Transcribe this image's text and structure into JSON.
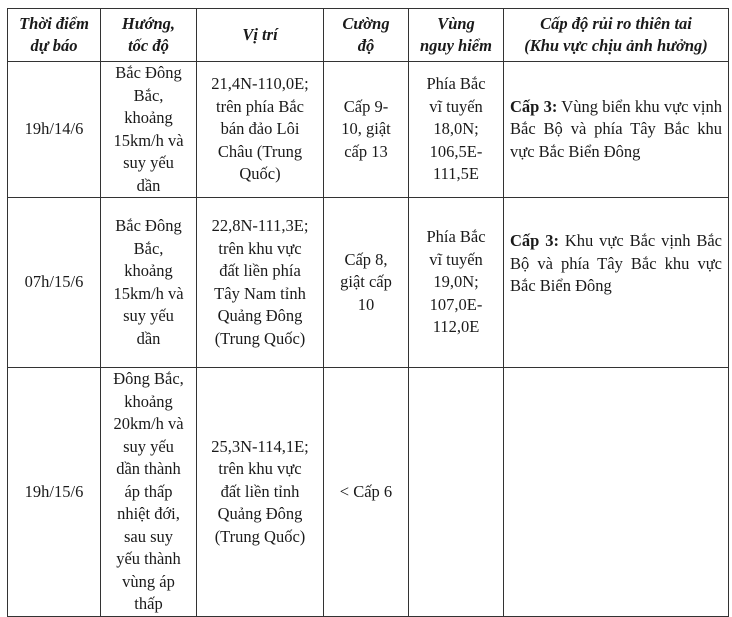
{
  "headers": [
    "Thời điểm\ndự báo",
    "Hướng,\ntốc độ",
    "Vị trí",
    "Cường\nđộ",
    "Vùng\nnguy hiểm",
    "Cấp độ rủi ro thiên tai\n(Khu vực chịu ảnh hưởng)"
  ],
  "rows": [
    {
      "time": "19h/14/6",
      "direction": "Bắc Đông\nBắc,\nkhoảng\n15km/h và\nsuy yếu\ndần",
      "position": "21,4N-110,0E;\ntrên phía Bắc\nbán đảo Lôi\nChâu (Trung\nQuốc)",
      "intensity": "Cấp 9-\n10, giật\ncấp 13",
      "danger_zone": "Phía Bắc\nvĩ tuyến\n18,0N;\n106,5E-\n111,5E",
      "risk_label": "Cấp 3:",
      "risk_text": " Vùng biển khu vực vịnh Bắc Bộ và phía Tây Bắc khu vực Bắc Biển Đông"
    },
    {
      "time": "07h/15/6",
      "direction": "Bắc Đông\nBắc,\nkhoảng\n15km/h và\nsuy yếu\ndần",
      "position": "22,8N-111,3E;\ntrên khu vực\nđất liền phía\nTây Nam tỉnh\nQuảng Đông\n(Trung Quốc)",
      "intensity": "Cấp 8,\ngiật cấp\n10",
      "danger_zone": "Phía Bắc\nvĩ tuyến\n19,0N;\n107,0E-\n112,0E",
      "risk_label": "Cấp 3:",
      "risk_text": " Khu vực Bắc vịnh Bắc Bộ và phía Tây Bắc khu vực Bắc Biển Đông"
    },
    {
      "time": "19h/15/6",
      "direction": "Đông Bắc,\nkhoảng\n20km/h và\nsuy yếu\ndần thành\náp thấp\nnhiệt đới,\nsau suy\nyếu thành\nvùng áp\nthấp",
      "position": "25,3N-114,1E;\ntrên khu vực\nđất liền tỉnh\nQuảng Đông\n(Trung Quốc)",
      "intensity": "< Cấp 6",
      "danger_zone": "",
      "risk_label": "",
      "risk_text": ""
    }
  ]
}
